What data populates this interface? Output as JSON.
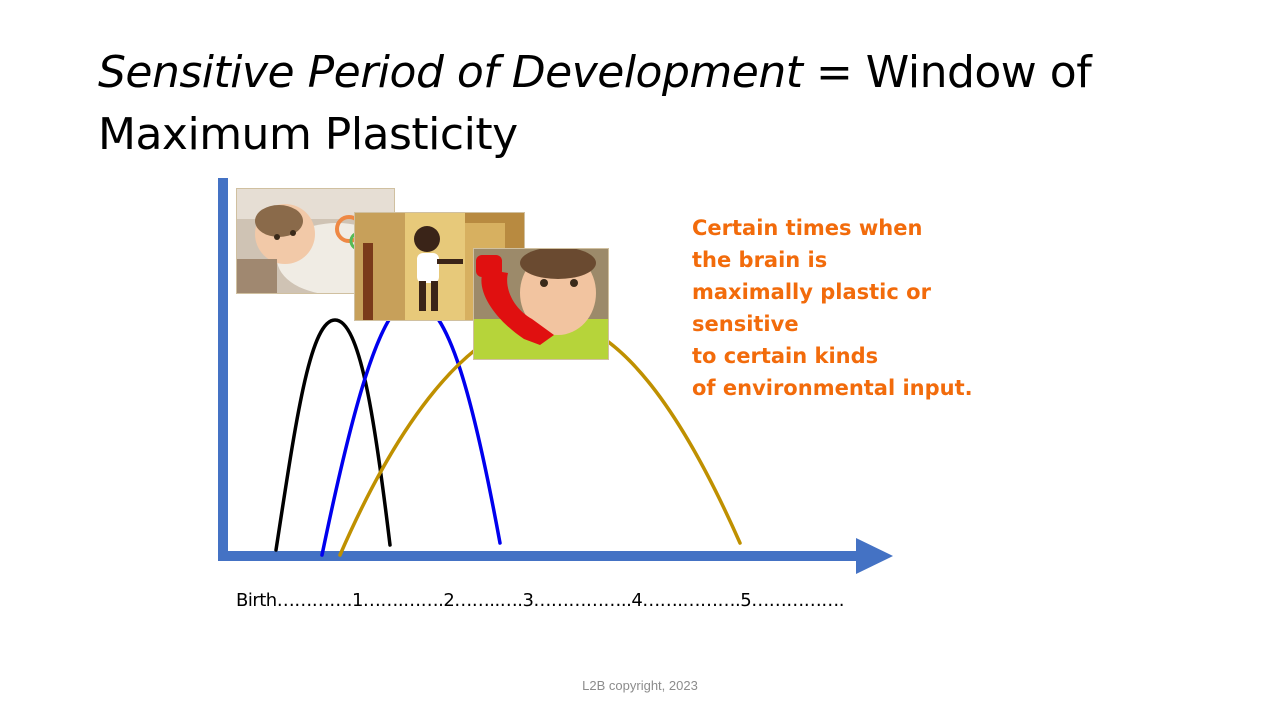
{
  "slide": {
    "title_italic": "Sensitive Period of Development",
    "title_rest": " =  Window of Maximum Plasticity",
    "callout_lines": [
      "Certain times when",
      "the brain is",
      "maximally plastic or",
      "sensitive",
      "to certain kinds",
      "of environmental input."
    ],
    "axis_label": "Birth………….1…….…….2……..….3……………..4…….……….5…………….",
    "footer": "L2B copyright, 2023"
  },
  "colors": {
    "axis": "#4472c4",
    "curve_1": "#000000",
    "curve_2": "#0000ee",
    "curve_3": "#bf9000",
    "callout": "#f26b0b"
  },
  "icons": {
    "photo_1": "baby-lying-photo",
    "photo_2": "toddler-walking-photo",
    "photo_3": "child-phone-photo"
  }
}
